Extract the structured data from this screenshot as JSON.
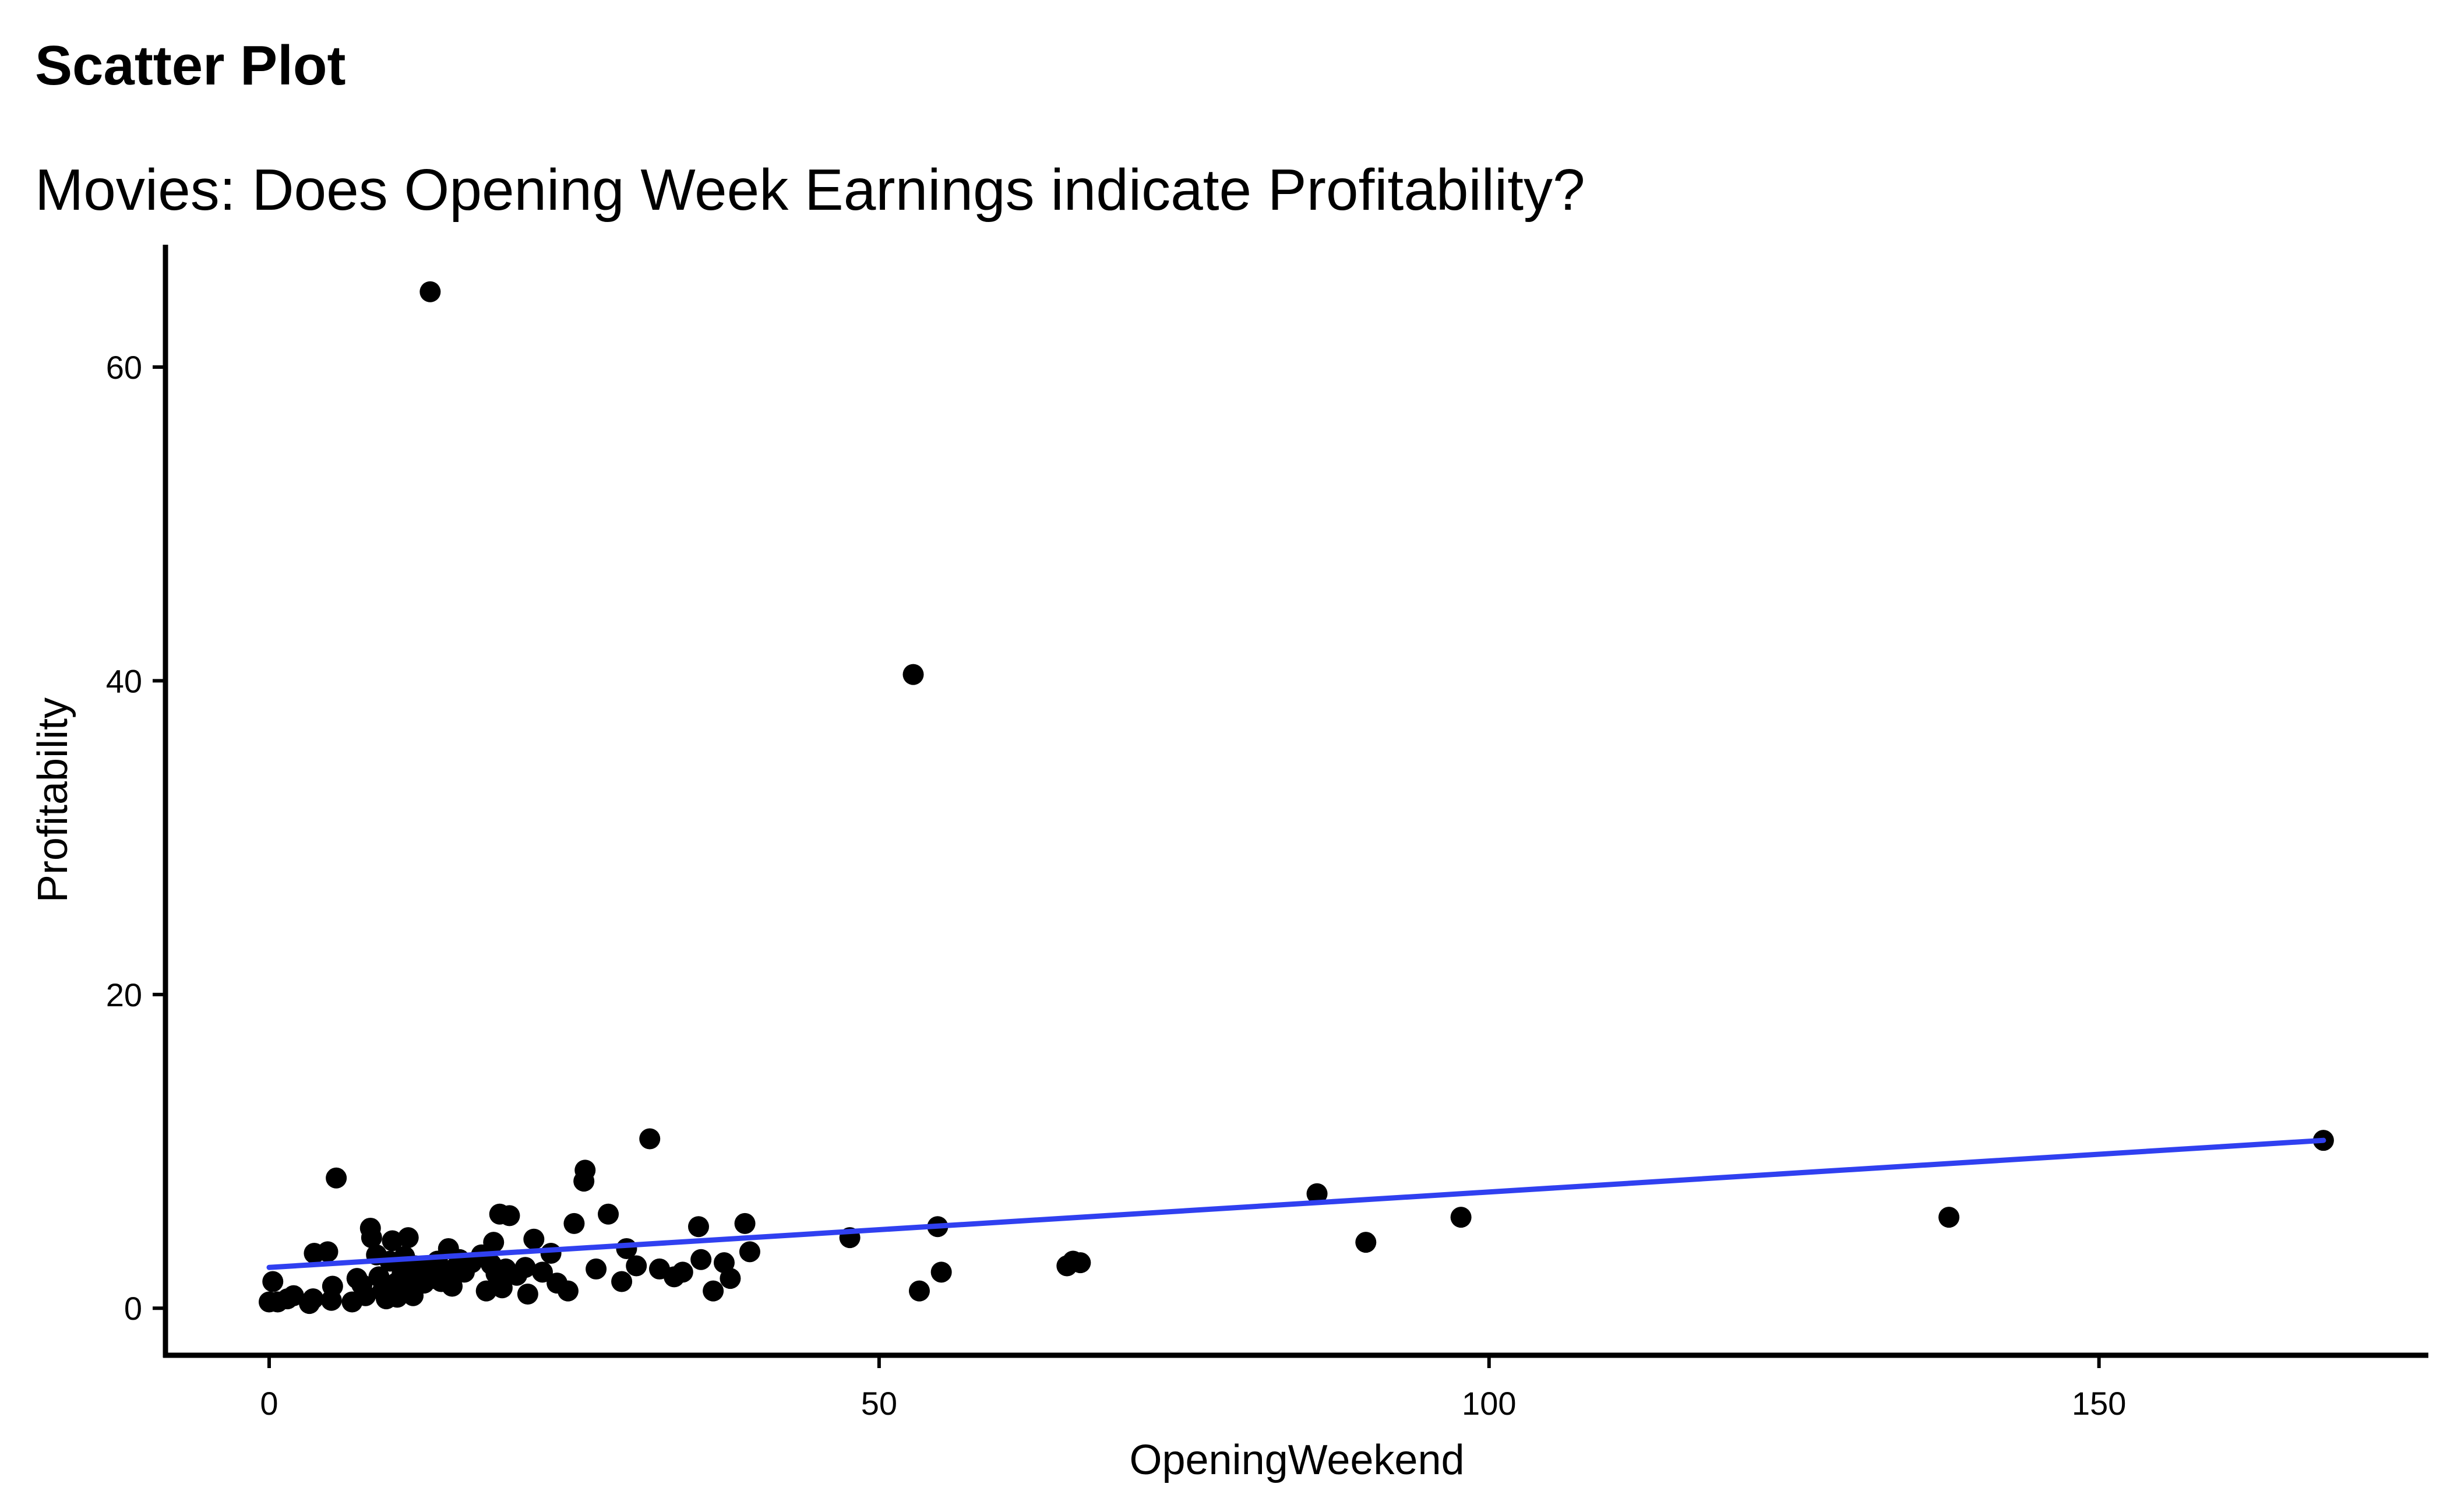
{
  "chart_data": {
    "type": "scatter",
    "title": "Scatter Plot",
    "subtitle": "Movies: Does Opening Week Earnings indicate Profitability?",
    "xlabel": "OpeningWeekend",
    "ylabel": "Profitability",
    "xlim": [
      -8.5,
      177
    ],
    "ylim": [
      -3.0,
      67.8
    ],
    "x_ticks": [
      0,
      50,
      100,
      150
    ],
    "y_ticks": [
      0,
      20,
      40,
      60
    ],
    "grid": false,
    "point_color": "#000000",
    "trend_color": "#3040f0",
    "trend_line": {
      "x": [
        0,
        168.4
      ],
      "y": [
        2.6,
        10.7
      ]
    },
    "points": [
      {
        "x": 0.0,
        "y": 0.4
      },
      {
        "x": 0.3,
        "y": 1.7
      },
      {
        "x": 0.7,
        "y": 0.4
      },
      {
        "x": 1.5,
        "y": 0.6
      },
      {
        "x": 2.0,
        "y": 0.8
      },
      {
        "x": 3.3,
        "y": 0.3
      },
      {
        "x": 3.6,
        "y": 0.6
      },
      {
        "x": 3.7,
        "y": 3.5
      },
      {
        "x": 4.8,
        "y": 3.6
      },
      {
        "x": 5.1,
        "y": 0.5
      },
      {
        "x": 5.2,
        "y": 1.4
      },
      {
        "x": 5.5,
        "y": 8.3
      },
      {
        "x": 6.8,
        "y": 0.4
      },
      {
        "x": 7.2,
        "y": 1.9
      },
      {
        "x": 7.6,
        "y": 1.5
      },
      {
        "x": 7.9,
        "y": 0.8
      },
      {
        "x": 8.3,
        "y": 5.1
      },
      {
        "x": 8.4,
        "y": 4.5
      },
      {
        "x": 8.8,
        "y": 3.4
      },
      {
        "x": 9.0,
        "y": 2.0
      },
      {
        "x": 9.3,
        "y": 1.1
      },
      {
        "x": 9.6,
        "y": 0.6
      },
      {
        "x": 9.9,
        "y": 3.0
      },
      {
        "x": 10.1,
        "y": 4.3
      },
      {
        "x": 10.4,
        "y": 1.6
      },
      {
        "x": 10.5,
        "y": 0.7
      },
      {
        "x": 10.9,
        "y": 2.2
      },
      {
        "x": 11.1,
        "y": 3.3
      },
      {
        "x": 11.4,
        "y": 4.5
      },
      {
        "x": 11.6,
        "y": 1.5
      },
      {
        "x": 11.8,
        "y": 0.8
      },
      {
        "x": 12.0,
        "y": 2.7
      },
      {
        "x": 12.3,
        "y": 2.1
      },
      {
        "x": 12.7,
        "y": 1.6
      },
      {
        "x": 13.0,
        "y": 2.5
      },
      {
        "x": 13.2,
        "y": 64.8
      },
      {
        "x": 13.5,
        "y": 1.9
      },
      {
        "x": 13.8,
        "y": 3.0
      },
      {
        "x": 14.1,
        "y": 1.7
      },
      {
        "x": 14.4,
        "y": 2.2
      },
      {
        "x": 14.7,
        "y": 3.8
      },
      {
        "x": 15.0,
        "y": 1.4
      },
      {
        "x": 15.3,
        "y": 2.6
      },
      {
        "x": 15.6,
        "y": 3.1
      },
      {
        "x": 16.0,
        "y": 2.3
      },
      {
        "x": 16.6,
        "y": 2.9
      },
      {
        "x": 17.4,
        "y": 3.4
      },
      {
        "x": 17.8,
        "y": 1.1
      },
      {
        "x": 18.2,
        "y": 2.8
      },
      {
        "x": 18.4,
        "y": 4.2
      },
      {
        "x": 18.6,
        "y": 2.2
      },
      {
        "x": 18.9,
        "y": 6.0
      },
      {
        "x": 19.1,
        "y": 1.3
      },
      {
        "x": 19.4,
        "y": 2.5
      },
      {
        "x": 19.7,
        "y": 5.9
      },
      {
        "x": 20.3,
        "y": 2.1
      },
      {
        "x": 21.0,
        "y": 2.6
      },
      {
        "x": 21.2,
        "y": 0.9
      },
      {
        "x": 21.7,
        "y": 4.4
      },
      {
        "x": 22.4,
        "y": 2.3
      },
      {
        "x": 23.1,
        "y": 3.5
      },
      {
        "x": 23.6,
        "y": 1.6
      },
      {
        "x": 24.5,
        "y": 1.1
      },
      {
        "x": 25.0,
        "y": 5.4
      },
      {
        "x": 25.8,
        "y": 8.1
      },
      {
        "x": 25.9,
        "y": 8.8
      },
      {
        "x": 26.8,
        "y": 2.5
      },
      {
        "x": 27.8,
        "y": 6.0
      },
      {
        "x": 28.9,
        "y": 1.7
      },
      {
        "x": 29.3,
        "y": 3.8
      },
      {
        "x": 30.1,
        "y": 2.7
      },
      {
        "x": 31.2,
        "y": 10.8
      },
      {
        "x": 32.0,
        "y": 2.5
      },
      {
        "x": 33.2,
        "y": 2.0
      },
      {
        "x": 33.9,
        "y": 2.3
      },
      {
        "x": 35.2,
        "y": 5.2
      },
      {
        "x": 35.4,
        "y": 3.1
      },
      {
        "x": 36.4,
        "y": 1.1
      },
      {
        "x": 37.3,
        "y": 2.9
      },
      {
        "x": 37.8,
        "y": 1.9
      },
      {
        "x": 39.0,
        "y": 5.4
      },
      {
        "x": 39.4,
        "y": 3.6
      },
      {
        "x": 47.6,
        "y": 4.5
      },
      {
        "x": 52.8,
        "y": 40.4
      },
      {
        "x": 53.3,
        "y": 1.1
      },
      {
        "x": 54.8,
        "y": 5.2
      },
      {
        "x": 55.1,
        "y": 2.3
      },
      {
        "x": 65.4,
        "y": 2.7
      },
      {
        "x": 65.9,
        "y": 3.0
      },
      {
        "x": 66.5,
        "y": 2.9
      },
      {
        "x": 85.9,
        "y": 7.3
      },
      {
        "x": 89.9,
        "y": 4.2
      },
      {
        "x": 97.7,
        "y": 5.8
      },
      {
        "x": 137.7,
        "y": 5.8
      },
      {
        "x": 168.4,
        "y": 10.7
      }
    ]
  }
}
